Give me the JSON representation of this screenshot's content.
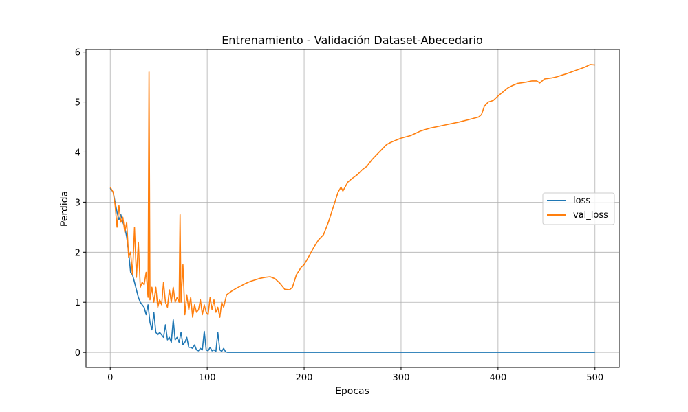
{
  "chart_data": {
    "type": "line",
    "title": "Entrenamiento - Validación Dataset-Abecedario",
    "xlabel": "Epocas",
    "ylabel": "Perdida",
    "xlim": [
      -25,
      525
    ],
    "ylim": [
      -0.3,
      6.05
    ],
    "xticks": [
      0,
      100,
      200,
      300,
      400,
      500
    ],
    "yticks": [
      0,
      1,
      2,
      3,
      4,
      5,
      6
    ],
    "grid": true,
    "legend_position": "center-right",
    "series": [
      {
        "name": "loss",
        "color": "#1f77b4",
        "points": [
          [
            0,
            3.28
          ],
          [
            3,
            3.2
          ],
          [
            5,
            3.0
          ],
          [
            7,
            2.8
          ],
          [
            9,
            2.65
          ],
          [
            11,
            2.75
          ],
          [
            13,
            2.6
          ],
          [
            15,
            2.5
          ],
          [
            17,
            2.3
          ],
          [
            19,
            2.0
          ],
          [
            21,
            1.6
          ],
          [
            23,
            1.55
          ],
          [
            25,
            1.4
          ],
          [
            27,
            1.25
          ],
          [
            29,
            1.1
          ],
          [
            31,
            1.0
          ],
          [
            33,
            0.95
          ],
          [
            35,
            0.9
          ],
          [
            37,
            0.75
          ],
          [
            39,
            0.95
          ],
          [
            41,
            0.6
          ],
          [
            43,
            0.45
          ],
          [
            45,
            0.8
          ],
          [
            47,
            0.4
          ],
          [
            49,
            0.35
          ],
          [
            51,
            0.4
          ],
          [
            53,
            0.35
          ],
          [
            55,
            0.3
          ],
          [
            57,
            0.55
          ],
          [
            59,
            0.25
          ],
          [
            61,
            0.3
          ],
          [
            63,
            0.2
          ],
          [
            65,
            0.65
          ],
          [
            67,
            0.25
          ],
          [
            69,
            0.3
          ],
          [
            71,
            0.2
          ],
          [
            73,
            0.4
          ],
          [
            75,
            0.15
          ],
          [
            77,
            0.2
          ],
          [
            79,
            0.3
          ],
          [
            81,
            0.1
          ],
          [
            83,
            0.1
          ],
          [
            85,
            0.08
          ],
          [
            87,
            0.15
          ],
          [
            89,
            0.05
          ],
          [
            91,
            0.03
          ],
          [
            93,
            0.08
          ],
          [
            95,
            0.05
          ],
          [
            97,
            0.42
          ],
          [
            99,
            0.05
          ],
          [
            101,
            0.03
          ],
          [
            103,
            0.1
          ],
          [
            105,
            0.03
          ],
          [
            107,
            0.05
          ],
          [
            109,
            0.02
          ],
          [
            111,
            0.4
          ],
          [
            113,
            0.05
          ],
          [
            115,
            0.02
          ],
          [
            117,
            0.08
          ],
          [
            119,
            0.01
          ],
          [
            121,
            0.0
          ],
          [
            125,
            0.0
          ],
          [
            150,
            0.0
          ],
          [
            200,
            0.0
          ],
          [
            300,
            0.0
          ],
          [
            400,
            0.0
          ],
          [
            500,
            0.0
          ]
        ]
      },
      {
        "name": "val_loss",
        "color": "#ff7f0e",
        "points": [
          [
            0,
            3.3
          ],
          [
            3,
            3.2
          ],
          [
            5,
            2.95
          ],
          [
            7,
            2.5
          ],
          [
            9,
            2.93
          ],
          [
            11,
            2.6
          ],
          [
            13,
            2.7
          ],
          [
            15,
            2.4
          ],
          [
            17,
            2.6
          ],
          [
            19,
            1.9
          ],
          [
            21,
            2.0
          ],
          [
            23,
            1.55
          ],
          [
            25,
            2.5
          ],
          [
            27,
            1.5
          ],
          [
            29,
            2.2
          ],
          [
            31,
            1.3
          ],
          [
            33,
            1.4
          ],
          [
            35,
            1.35
          ],
          [
            37,
            1.6
          ],
          [
            39,
            1.1
          ],
          [
            40,
            5.6
          ],
          [
            41,
            1.05
          ],
          [
            43,
            1.3
          ],
          [
            45,
            1.0
          ],
          [
            47,
            1.3
          ],
          [
            49,
            0.9
          ],
          [
            51,
            1.05
          ],
          [
            53,
            0.95
          ],
          [
            55,
            1.4
          ],
          [
            57,
            1.0
          ],
          [
            59,
            0.9
          ],
          [
            61,
            1.25
          ],
          [
            63,
            1.0
          ],
          [
            65,
            1.3
          ],
          [
            67,
            1.0
          ],
          [
            69,
            1.1
          ],
          [
            71,
            1.0
          ],
          [
            72,
            2.75
          ],
          [
            73,
            1.0
          ],
          [
            75,
            1.75
          ],
          [
            77,
            0.75
          ],
          [
            79,
            1.15
          ],
          [
            81,
            0.85
          ],
          [
            83,
            1.1
          ],
          [
            85,
            0.7
          ],
          [
            87,
            0.95
          ],
          [
            89,
            0.8
          ],
          [
            91,
            0.85
          ],
          [
            93,
            1.05
          ],
          [
            95,
            0.75
          ],
          [
            97,
            0.95
          ],
          [
            99,
            0.8
          ],
          [
            101,
            0.75
          ],
          [
            103,
            1.1
          ],
          [
            105,
            0.85
          ],
          [
            107,
            1.05
          ],
          [
            109,
            0.8
          ],
          [
            111,
            0.9
          ],
          [
            113,
            0.7
          ],
          [
            115,
            1.0
          ],
          [
            117,
            0.9
          ],
          [
            120,
            1.15
          ],
          [
            125,
            1.22
          ],
          [
            130,
            1.28
          ],
          [
            135,
            1.33
          ],
          [
            140,
            1.38
          ],
          [
            145,
            1.42
          ],
          [
            150,
            1.45
          ],
          [
            155,
            1.48
          ],
          [
            160,
            1.5
          ],
          [
            165,
            1.51
          ],
          [
            170,
            1.47
          ],
          [
            175,
            1.38
          ],
          [
            180,
            1.26
          ],
          [
            185,
            1.25
          ],
          [
            188,
            1.3
          ],
          [
            192,
            1.55
          ],
          [
            197,
            1.7
          ],
          [
            200,
            1.75
          ],
          [
            205,
            1.92
          ],
          [
            210,
            2.1
          ],
          [
            215,
            2.25
          ],
          [
            220,
            2.35
          ],
          [
            225,
            2.6
          ],
          [
            230,
            2.9
          ],
          [
            235,
            3.2
          ],
          [
            238,
            3.3
          ],
          [
            240,
            3.22
          ],
          [
            245,
            3.4
          ],
          [
            250,
            3.48
          ],
          [
            255,
            3.55
          ],
          [
            260,
            3.65
          ],
          [
            265,
            3.72
          ],
          [
            270,
            3.85
          ],
          [
            275,
            3.95
          ],
          [
            280,
            4.05
          ],
          [
            285,
            4.15
          ],
          [
            290,
            4.2
          ],
          [
            295,
            4.24
          ],
          [
            300,
            4.28
          ],
          [
            310,
            4.33
          ],
          [
            320,
            4.42
          ],
          [
            330,
            4.48
          ],
          [
            340,
            4.52
          ],
          [
            350,
            4.56
          ],
          [
            360,
            4.6
          ],
          [
            370,
            4.65
          ],
          [
            380,
            4.7
          ],
          [
            383,
            4.75
          ],
          [
            386,
            4.92
          ],
          [
            390,
            5.0
          ],
          [
            395,
            5.03
          ],
          [
            400,
            5.12
          ],
          [
            405,
            5.2
          ],
          [
            410,
            5.28
          ],
          [
            415,
            5.33
          ],
          [
            420,
            5.37
          ],
          [
            430,
            5.4
          ],
          [
            435,
            5.42
          ],
          [
            440,
            5.42
          ],
          [
            443,
            5.38
          ],
          [
            448,
            5.46
          ],
          [
            455,
            5.48
          ],
          [
            460,
            5.5
          ],
          [
            470,
            5.56
          ],
          [
            480,
            5.63
          ],
          [
            490,
            5.7
          ],
          [
            495,
            5.75
          ],
          [
            500,
            5.74
          ]
        ]
      }
    ]
  }
}
